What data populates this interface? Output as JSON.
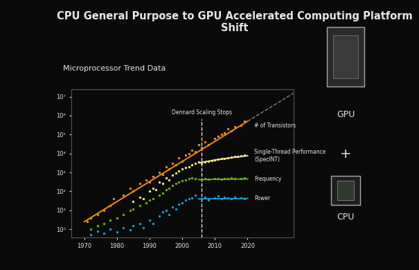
{
  "chart_data": {
    "type": "scatter",
    "title": "CPU General Purpose to GPU Accelerated Computing Platform Shift",
    "subtitle": "Microprocessor Trend Data",
    "log": "y",
    "grid": false,
    "xlim": [
      1966,
      2034
    ],
    "xticks": [
      1970,
      1980,
      1990,
      2000,
      2010,
      2020
    ],
    "ylim": [
      0.36,
      25000000
    ],
    "yticks": [
      {
        "value": 1,
        "label": "10⁰"
      },
      {
        "value": 10,
        "label": "10¹"
      },
      {
        "value": 100,
        "label": "10²"
      },
      {
        "value": 1000,
        "label": "10³"
      },
      {
        "value": 10000,
        "label": "10⁴"
      },
      {
        "value": 100000,
        "label": "10⁵"
      },
      {
        "value": 1000000,
        "label": "10⁶"
      },
      {
        "value": 10000000,
        "label": "10⁷"
      }
    ],
    "annotations": [
      {
        "text": "Dennard Scaling Stops",
        "x": 2006,
        "line_style": "dashed"
      }
    ],
    "side_labels": [
      "GPU",
      "+",
      "CPU"
    ],
    "series": [
      {
        "name": "# of Transistors",
        "color": "#f08c1e",
        "marker": "o",
        "x": [
          1971,
          1972,
          1974,
          1976,
          1978,
          1979,
          1982,
          1984,
          1985,
          1987,
          1989,
          1990,
          1991,
          1993,
          1994,
          1995,
          1996,
          1997,
          1998,
          1999,
          2000,
          2001,
          2002,
          2003,
          2004,
          2005,
          2006,
          2007,
          2008,
          2010,
          2011,
          2012,
          2013,
          2014,
          2015,
          2016,
          2018,
          2019
        ],
        "values": [
          2.5,
          4,
          6,
          10,
          18,
          40,
          60,
          150,
          100,
          250,
          400,
          300,
          600,
          1000,
          800,
          2000,
          1500,
          3000,
          2500,
          6000,
          4000,
          8000,
          10000,
          15000,
          12000,
          30000,
          20000,
          40000,
          30000,
          60000,
          80000,
          100000,
          120000,
          200000,
          150000,
          250000,
          300000,
          500000
        ],
        "trend": {
          "x": [
            1970,
            2020
          ],
          "values": [
            2.5,
            500000
          ],
          "line_style": "solid"
        },
        "extension": {
          "x": [
            2020,
            2034
          ],
          "values": [
            500000,
            15000000
          ],
          "line_style": "dashed"
        }
      },
      {
        "name": "Single-Thread Performance\n(SpecINT)",
        "color": "#f0e68c",
        "marker": "o",
        "x": [
          1985,
          1987,
          1988,
          1990,
          1991,
          1992,
          1993,
          1994,
          1995,
          1996,
          1997,
          1998,
          1999,
          2000,
          2001,
          2002,
          2003,
          2004,
          2005,
          2006,
          2007,
          2008,
          2009,
          2010,
          2011,
          2012,
          2013,
          2014,
          2015,
          2016,
          2017,
          2018,
          2019
        ],
        "values": [
          30,
          50,
          40,
          100,
          150,
          120,
          300,
          250,
          500,
          400,
          700,
          900,
          1200,
          1500,
          1800,
          2000,
          2500,
          3000,
          3500,
          3000,
          3500,
          4000,
          4200,
          4500,
          5000,
          5200,
          5500,
          6000,
          6500,
          7000,
          7000,
          7500,
          8000
        ],
        "trend": {
          "x": [
            2005,
            2010,
            2015,
            2020
          ],
          "values": [
            3200,
            4500,
            6000,
            7500
          ],
          "line_style": "solid"
        }
      },
      {
        "name": "Frequency",
        "color": "#6ab023",
        "marker": "o",
        "x": [
          1972,
          1974,
          1976,
          1978,
          1980,
          1982,
          1984,
          1985,
          1987,
          1989,
          1990,
          1991,
          1993,
          1994,
          1995,
          1996,
          1997,
          1998,
          1999,
          2000,
          2001,
          2002,
          2003,
          2004,
          2006,
          2007,
          2008,
          2010,
          2011,
          2012,
          2013,
          2014,
          2015,
          2016,
          2018,
          2019
        ],
        "values": [
          1,
          1.5,
          2,
          3,
          4,
          6,
          10,
          12,
          18,
          25,
          35,
          40,
          60,
          80,
          120,
          150,
          200,
          250,
          300,
          350,
          400,
          450,
          500,
          450,
          400,
          450,
          420,
          450,
          480,
          430,
          470,
          450,
          500,
          480,
          450,
          500
        ],
        "trend": {
          "x": [
            2005,
            2020
          ],
          "values": [
            420,
            450
          ],
          "line_style": "solid"
        }
      },
      {
        "name": "Power",
        "color": "#1e9bd7",
        "marker": "o",
        "x": [
          1972,
          1974,
          1976,
          1978,
          1980,
          1982,
          1984,
          1985,
          1987,
          1988,
          1990,
          1991,
          1993,
          1994,
          1995,
          1996,
          1997,
          1998,
          1999,
          2000,
          2001,
          2002,
          2003,
          2004,
          2006,
          2007,
          2008,
          2010,
          2011,
          2012,
          2013,
          2014,
          2015,
          2016,
          2018,
          2019
        ],
        "values": [
          0.5,
          0.8,
          0.6,
          1,
          0.7,
          1.2,
          0.9,
          1.5,
          2,
          1.2,
          3,
          2,
          5,
          8,
          10,
          6,
          15,
          12,
          20,
          25,
          35,
          40,
          45,
          60,
          40,
          50,
          35,
          45,
          55,
          40,
          50,
          45,
          40,
          50,
          45,
          40
        ],
        "trend": {
          "x": [
            2005,
            2020
          ],
          "values": [
            40,
            42
          ],
          "line_style": "solid"
        }
      }
    ]
  }
}
